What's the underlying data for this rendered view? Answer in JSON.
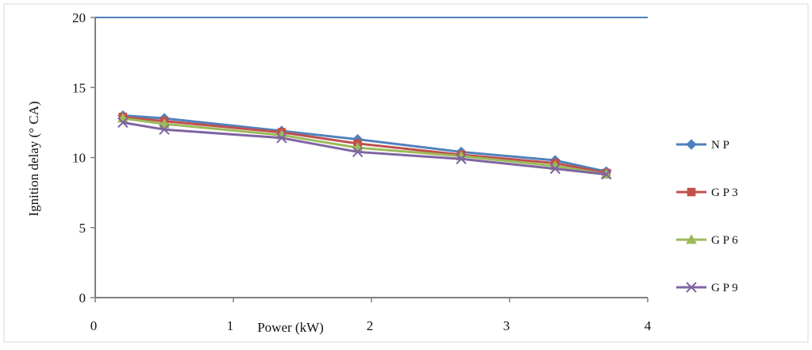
{
  "chart_data": {
    "type": "line",
    "title": "",
    "xlabel": "Power (kW)",
    "ylabel": "Ignition delay (° CA)",
    "xlim": [
      0,
      4
    ],
    "ylim": [
      0,
      20
    ],
    "x_ticks": [
      "0",
      "1",
      "2",
      "3",
      "4"
    ],
    "y_ticks": [
      "0",
      "5",
      "10",
      "15",
      "20"
    ],
    "grid": false,
    "legend_position": "right",
    "x": [
      0.2,
      0.5,
      1.35,
      1.9,
      2.65,
      3.33,
      3.7
    ],
    "series": [
      {
        "name": "N P",
        "color": "#4F81BD",
        "marker": "diamond",
        "values": [
          13.0,
          12.8,
          11.9,
          11.3,
          10.4,
          9.8,
          9.0
        ]
      },
      {
        "name": "G P 3",
        "color": "#C0504D",
        "marker": "square",
        "values": [
          12.9,
          12.6,
          11.8,
          11.0,
          10.2,
          9.6,
          8.9
        ]
      },
      {
        "name": "G P 6",
        "color": "#9BBB59",
        "marker": "triangle",
        "values": [
          12.8,
          12.4,
          11.6,
          10.7,
          10.1,
          9.4,
          8.8
        ]
      },
      {
        "name": "G P 9",
        "color": "#8064A2",
        "marker": "x",
        "values": [
          12.5,
          12.0,
          11.4,
          10.4,
          9.9,
          9.2,
          8.8
        ]
      }
    ],
    "axis_color": "#7f7f7f",
    "top_line_color": "#4F81BD"
  }
}
